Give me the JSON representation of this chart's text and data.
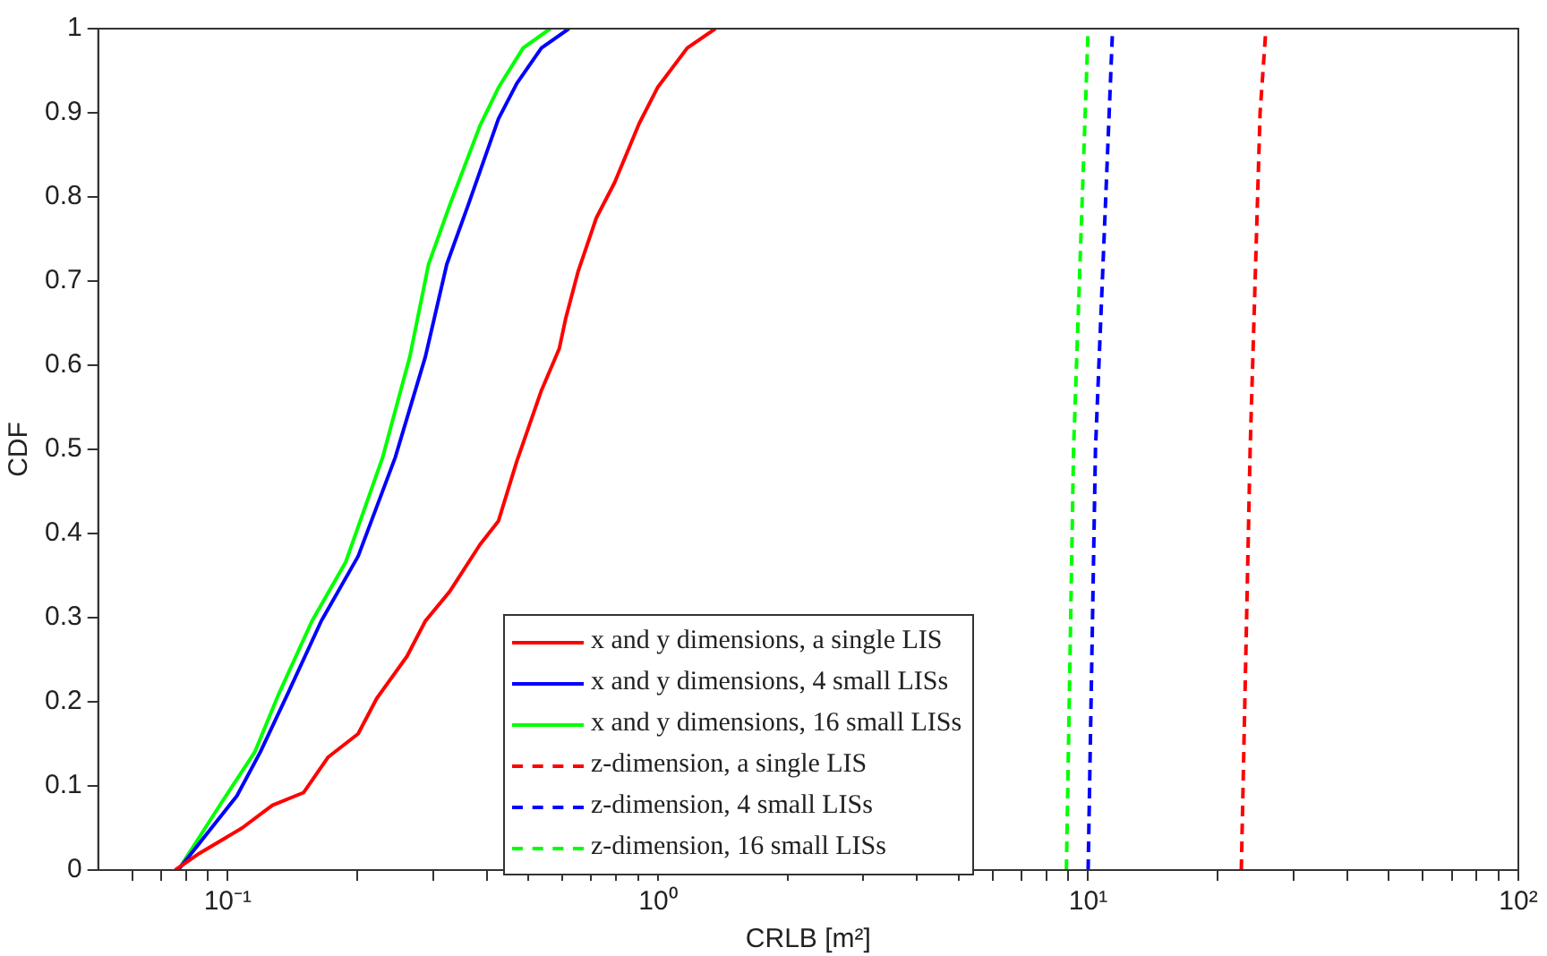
{
  "chart_data": {
    "type": "line",
    "xlabel": "CRLB [m²]",
    "ylabel": "CDF",
    "log": "x",
    "grid": false,
    "legend": "bottom",
    "marker": "none",
    "xlim": [
      0.05,
      100
    ],
    "xticks": [
      {
        "value": 0.06,
        "label": null
      },
      {
        "value": 0.07,
        "label": null
      },
      {
        "value": 0.08,
        "label": null
      },
      {
        "value": 0.09,
        "label": null
      },
      {
        "value": 0.1,
        "label": "10⁻¹"
      },
      {
        "value": 0.2,
        "label": null
      },
      {
        "value": 0.3,
        "label": null
      },
      {
        "value": 0.4,
        "label": null
      },
      {
        "value": 0.5,
        "label": null
      },
      {
        "value": 0.6,
        "label": null
      },
      {
        "value": 0.7,
        "label": null
      },
      {
        "value": 0.8,
        "label": null
      },
      {
        "value": 0.9,
        "label": null
      },
      {
        "value": 1,
        "label": "10⁰"
      },
      {
        "value": 2,
        "label": null
      },
      {
        "value": 3,
        "label": null
      },
      {
        "value": 4,
        "label": null
      },
      {
        "value": 5,
        "label": null
      },
      {
        "value": 6,
        "label": null
      },
      {
        "value": 7,
        "label": null
      },
      {
        "value": 8,
        "label": null
      },
      {
        "value": 9,
        "label": null
      },
      {
        "value": 10,
        "label": "10¹"
      },
      {
        "value": 20,
        "label": null
      },
      {
        "value": 30,
        "label": null
      },
      {
        "value": 40,
        "label": null
      },
      {
        "value": 50,
        "label": null
      },
      {
        "value": 60,
        "label": null
      },
      {
        "value": 70,
        "label": null
      },
      {
        "value": 80,
        "label": null
      },
      {
        "value": 90,
        "label": null
      },
      {
        "value": 100,
        "label": "10²"
      }
    ],
    "ylim": [
      0,
      1
    ],
    "yticks": [
      0,
      0.1,
      0.2,
      0.3,
      0.4,
      0.5,
      0.6,
      0.7,
      0.8,
      0.9,
      1
    ],
    "series": [
      {
        "name": "x and y dimensions, a single LIS",
        "color": "#ff0000",
        "line_style": "solid",
        "x": [
          0.0755,
          0.086,
          0.108,
          0.127,
          0.15,
          0.171,
          0.201,
          0.222,
          0.261,
          0.288,
          0.328,
          0.386,
          0.426,
          0.47,
          0.536,
          0.59,
          0.61,
          0.652,
          0.719,
          0.793,
          0.904,
          0.998,
          1.17,
          1.36
        ],
        "values": [
          0,
          0.02,
          0.05,
          0.077,
          0.092,
          0.134,
          0.162,
          0.204,
          0.254,
          0.296,
          0.331,
          0.387,
          0.415,
          0.486,
          0.57,
          0.62,
          0.655,
          0.711,
          0.775,
          0.817,
          0.887,
          0.93,
          0.977,
          1
        ]
      },
      {
        "name": "x and y dimensions, 4 small LISs",
        "color": "#0000ff",
        "line_style": "solid",
        "x": [
          0.0767,
          0.105,
          0.119,
          0.138,
          0.165,
          0.201,
          0.245,
          0.288,
          0.323,
          0.362,
          0.426,
          0.47,
          0.536,
          0.621
        ],
        "values": [
          0,
          0.088,
          0.14,
          0.21,
          0.296,
          0.373,
          0.49,
          0.61,
          0.72,
          0.79,
          0.893,
          0.935,
          0.977,
          1
        ]
      },
      {
        "name": "x and y dimensions, 16 small LISs",
        "color": "#00ff00",
        "line_style": "solid",
        "x": [
          0.0767,
          0.0964,
          0.1155,
          0.1316,
          0.157,
          0.188,
          0.229,
          0.265,
          0.293,
          0.328,
          0.386,
          0.426,
          0.486,
          0.562
        ],
        "values": [
          0,
          0.079,
          0.14,
          0.21,
          0.296,
          0.366,
          0.49,
          0.61,
          0.72,
          0.79,
          0.885,
          0.93,
          0.977,
          1
        ]
      },
      {
        "name": "z-dimension, a single LIS",
        "color": "#ff0000",
        "line_style": "dashed",
        "x": [
          22.7,
          23.8,
          25.1,
          25.9
        ],
        "values": [
          0,
          0.5,
          0.9,
          1
        ]
      },
      {
        "name": "z-dimension, 4 small LISs",
        "color": "#0000ff",
        "line_style": "dashed",
        "x": [
          10.0,
          10.4,
          11.4
        ],
        "values": [
          0,
          0.5,
          1
        ]
      },
      {
        "name": "z-dimension, 16 small LISs",
        "color": "#00ff00",
        "line_style": "dashed",
        "x": [
          8.9,
          9.25,
          10.0
        ],
        "values": [
          0,
          0.5,
          1
        ]
      }
    ]
  }
}
